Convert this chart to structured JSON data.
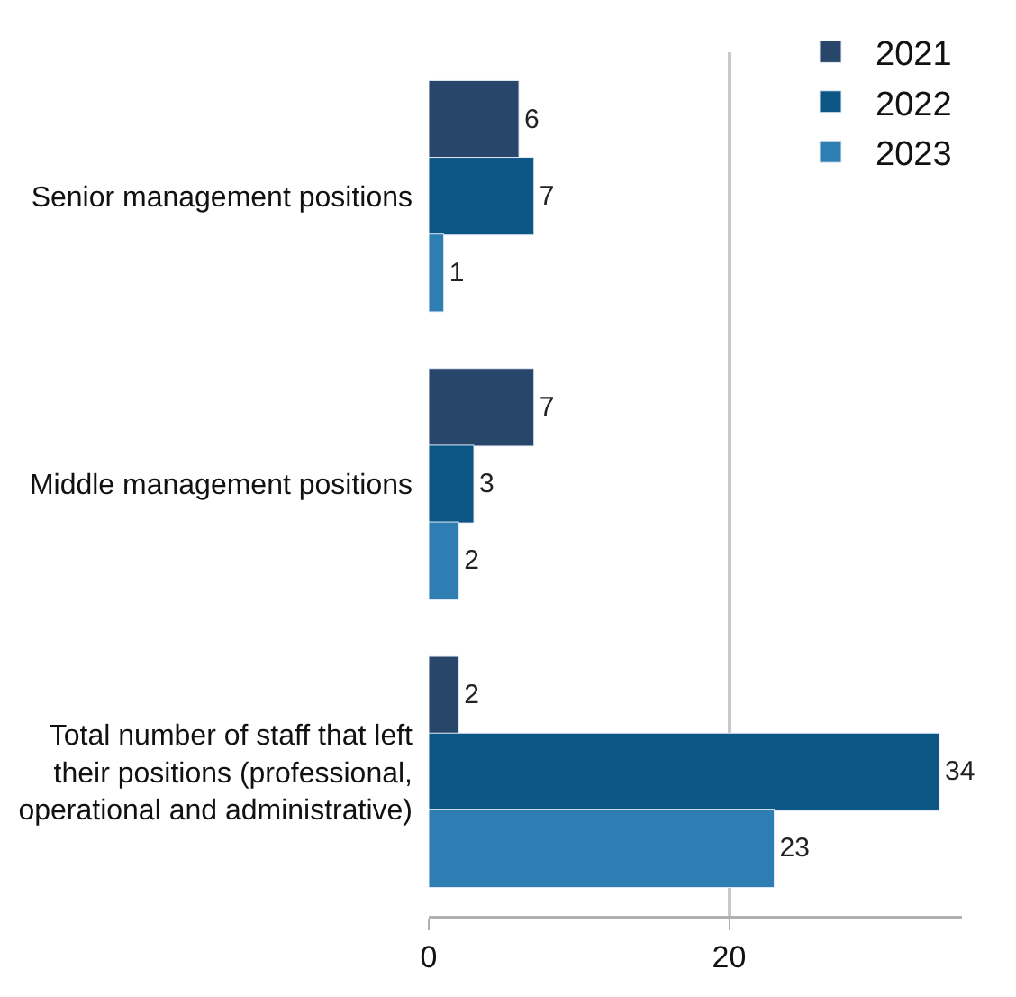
{
  "chart_data": {
    "type": "bar",
    "orientation": "horizontal",
    "categories": [
      "Senior management positions",
      "Middle management positions",
      "Total number of staff that left their positions (professional, operational and administrative)"
    ],
    "series": [
      {
        "name": "2021",
        "color": "#27466a",
        "values": [
          6,
          7,
          2
        ]
      },
      {
        "name": "2022",
        "color": "#0b5685",
        "values": [
          7,
          3,
          34
        ]
      },
      {
        "name": "2023",
        "color": "#2e7db3",
        "values": [
          1,
          2,
          23
        ]
      }
    ],
    "xlim": [
      0,
      35.5
    ],
    "xticks": [
      0,
      20
    ],
    "grid": "x",
    "legend": "top right",
    "data_labels": true
  }
}
